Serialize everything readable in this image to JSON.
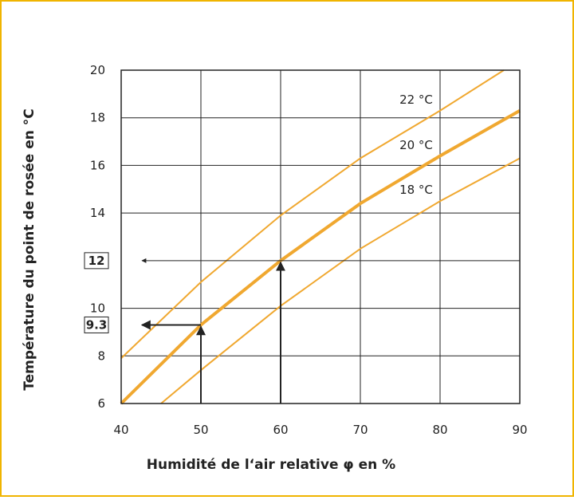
{
  "chart_data": {
    "type": "line",
    "xlabel": "Humidité de l‘air relative φ en %",
    "ylabel": "Température du point de rosée en °C",
    "xlim": [
      40,
      90
    ],
    "ylim": [
      6,
      20
    ],
    "xticks": [
      40,
      50,
      60,
      70,
      80,
      90
    ],
    "yticks": [
      6,
      8,
      10,
      14,
      16,
      18,
      20
    ],
    "grid": true,
    "series": [
      {
        "name": "22 °C",
        "color": "#f0a830",
        "x": [
          40,
          50,
          60,
          70,
          80,
          88
        ],
        "values": [
          7.9,
          11.1,
          13.9,
          16.3,
          18.3,
          20
        ]
      },
      {
        "name": "20 °C",
        "color": "#f0a830",
        "x": [
          40,
          50,
          60,
          70,
          80,
          90
        ],
        "values": [
          6.0,
          9.3,
          12.0,
          14.4,
          16.4,
          18.3
        ]
      },
      {
        "name": "18 °C",
        "color": "#f0a830",
        "x": [
          45,
          50,
          60,
          70,
          80,
          90
        ],
        "values": [
          6.0,
          7.4,
          10.1,
          12.5,
          14.5,
          16.3
        ]
      }
    ],
    "annotations": [
      {
        "x": 50,
        "y": 9.3
      },
      {
        "x": 60,
        "y": 12
      }
    ]
  }
}
